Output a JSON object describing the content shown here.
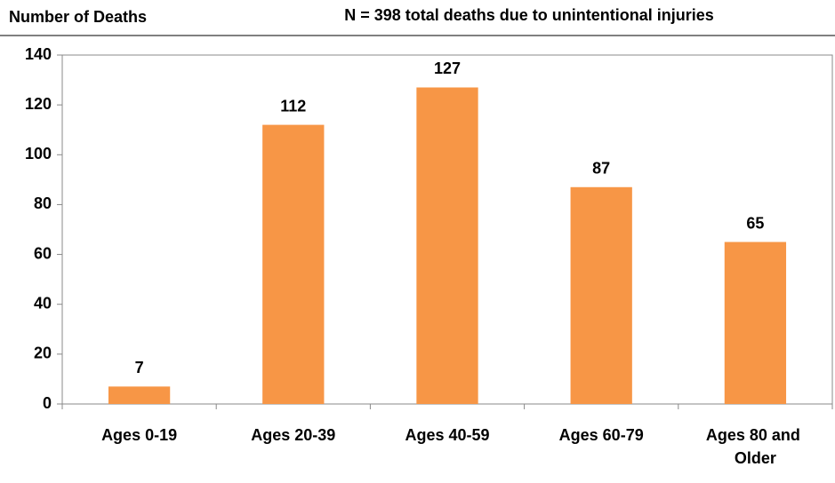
{
  "chart_data": {
    "type": "bar",
    "title": "N = 398 total deaths due to unintentional injuries",
    "y_label": "Number of Deaths",
    "categories": [
      "Ages 0-19",
      "Ages 20-39",
      "Ages 40-59",
      "Ages 60-79",
      "Ages 80 and Older"
    ],
    "values": [
      7,
      112,
      127,
      87,
      65
    ],
    "color": "#f79646",
    "ylim": [
      0,
      140
    ],
    "yticks": [
      0,
      20,
      40,
      60,
      80,
      100,
      120,
      140
    ],
    "grid": false
  }
}
